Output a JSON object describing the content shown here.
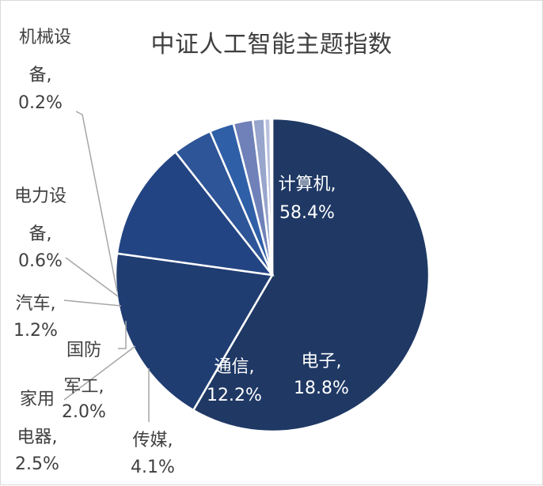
{
  "chart_data": {
    "type": "pie",
    "title": "中证人工智能主题指数",
    "slices": [
      {
        "name": "计算机",
        "value": 58.4,
        "label": "计算机,",
        "pct": "58.4%",
        "color": "#1f3864"
      },
      {
        "name": "电子",
        "value": 18.8,
        "label": "电子,",
        "pct": "18.8%",
        "color": "#203d72"
      },
      {
        "name": "通信",
        "value": 12.2,
        "label": "通信,",
        "pct": "12.2%",
        "color": "#234483"
      },
      {
        "name": "传媒",
        "value": 4.1,
        "label": "传媒,",
        "pct": "4.1%",
        "color": "#2e5597"
      },
      {
        "name": "家用电器",
        "value": 2.5,
        "label": "家用电器,",
        "pct": "2.5%",
        "color": "#2f5fa7"
      },
      {
        "name": "国防军工",
        "value": 2.0,
        "label": "国防军工,",
        "pct": "2.0%",
        "color": "#6f81b8"
      },
      {
        "name": "汽车",
        "value": 1.2,
        "label": "汽车,",
        "pct": "1.2%",
        "color": "#98a5cc"
      },
      {
        "name": "电力设备",
        "value": 0.6,
        "label": "电力设备,",
        "pct": "0.6%",
        "color": "#b9c1de"
      },
      {
        "name": "机械设备",
        "value": 0.2,
        "label": "机械设备,",
        "pct": "0.2%",
        "color": "#ccd3e8"
      }
    ],
    "legend": "none"
  }
}
